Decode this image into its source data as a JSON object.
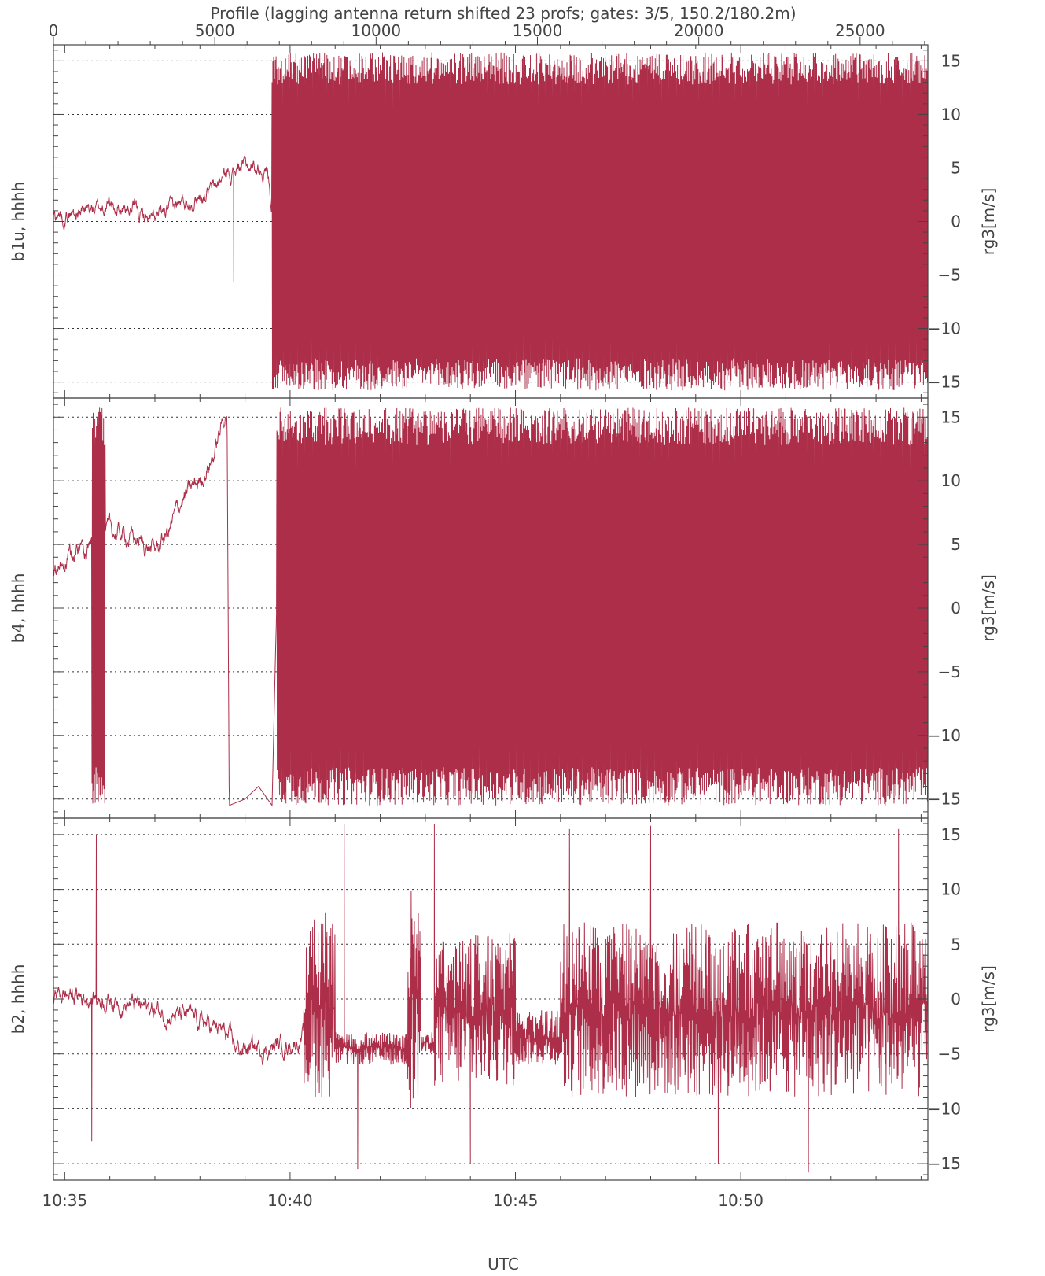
{
  "chart_data": {
    "type": "line",
    "title": "Profile (lagging antenna return shifted 23 profs; gates: 3/5, 150.2/180.2m)",
    "xlabel": "UTC",
    "top_axis": {
      "ticks": [
        0,
        5000,
        10000,
        15000,
        20000,
        25000
      ],
      "labels": [
        "0",
        "5000",
        "10000",
        "15000",
        "20000",
        "25000"
      ],
      "range": [
        0,
        27100
      ]
    },
    "x_minutes_range": [
      34.75,
      54.15
    ],
    "x_ticks": [
      35,
      40,
      45,
      50
    ],
    "x_tick_labels": [
      "10:35",
      "10:40",
      "10:45",
      "10:50"
    ],
    "ylim": [
      -16.5,
      16.5
    ],
    "grid_y": [
      -15,
      -10,
      -5,
      0,
      5,
      10,
      15
    ],
    "y_ticks": [
      15,
      10,
      5,
      0,
      -5,
      -10,
      -15
    ],
    "y_tick_labels": [
      "15",
      "10",
      "5",
      "0",
      "-5",
      "-10",
      "-15"
    ],
    "line_color": "#ad2e49",
    "panels": [
      {
        "left_label": "b1u, hhhh",
        "right_label": "rg3[m/s]",
        "trend": [
          [
            34.75,
            0.5
          ],
          [
            35.2,
            0.8
          ],
          [
            35.7,
            1.2
          ],
          [
            36.0,
            1.5
          ],
          [
            36.5,
            1.0
          ],
          [
            37.0,
            0.0
          ],
          [
            37.5,
            1.5
          ],
          [
            38.0,
            2.5
          ],
          [
            38.3,
            3.0
          ],
          [
            38.6,
            4.5
          ],
          [
            39.0,
            5.2
          ],
          [
            39.5,
            4.8
          ],
          [
            39.6,
            1.0
          ],
          [
            54.15,
            1.0
          ]
        ],
        "noisy_segments": [
          {
            "start": 34.75,
            "end": 39.6,
            "mode": "walk",
            "amplitude": 0.6
          },
          {
            "start": 39.6,
            "end": 54.15,
            "mode": "full",
            "low": -15.8,
            "high": 15.8
          }
        ],
        "spikes": [
          [
            38.75,
            -5.7
          ]
        ]
      },
      {
        "left_label": "b4, hhhh",
        "right_label": "rg3[m/s]",
        "trend": [
          [
            34.75,
            2.5
          ],
          [
            35.0,
            3.5
          ],
          [
            35.4,
            5.0
          ],
          [
            35.8,
            5.5
          ],
          [
            36.0,
            6.0
          ],
          [
            36.5,
            5.5
          ],
          [
            37.0,
            4.5
          ],
          [
            37.3,
            6.0
          ],
          [
            37.6,
            8.5
          ],
          [
            38.0,
            10.0
          ],
          [
            38.3,
            12.0
          ],
          [
            38.6,
            15.8
          ],
          [
            38.65,
            -15.5
          ],
          [
            39.0,
            -15.0
          ],
          [
            39.3,
            -14.0
          ],
          [
            39.6,
            -15.5
          ],
          [
            39.7,
            0
          ],
          [
            54.15,
            0
          ]
        ],
        "noisy_segments": [
          {
            "start": 34.75,
            "end": 38.6,
            "mode": "walk",
            "amplitude": 0.6
          },
          {
            "start": 35.6,
            "end": 35.9,
            "mode": "full",
            "low": -15.5,
            "high": 15.8
          },
          {
            "start": 39.7,
            "end": 54.15,
            "mode": "full",
            "low": -15.5,
            "high": 15.8
          }
        ],
        "spikes": []
      },
      {
        "left_label": "b2, hhhh",
        "right_label": "rg3[m/s]",
        "trend": [
          [
            34.75,
            0.5
          ],
          [
            35.5,
            0.2
          ],
          [
            36.0,
            0.0
          ],
          [
            36.5,
            -0.5
          ],
          [
            37.0,
            -1.0
          ],
          [
            37.5,
            -1.5
          ],
          [
            38.0,
            -2.0
          ],
          [
            38.5,
            -3.0
          ],
          [
            38.8,
            -4.5
          ],
          [
            39.5,
            -4.5
          ],
          [
            40.0,
            -4.0
          ],
          [
            40.3,
            -3.5
          ],
          [
            54.15,
            -1.0
          ]
        ],
        "noisy_segments": [
          {
            "start": 34.75,
            "end": 40.3,
            "mode": "walk",
            "amplitude": 0.7
          },
          {
            "start": 40.3,
            "end": 41.0,
            "mode": "band",
            "low": -9,
            "high": 8
          },
          {
            "start": 41.0,
            "end": 42.6,
            "mode": "band",
            "low": -6,
            "high": -3
          },
          {
            "start": 42.6,
            "end": 42.9,
            "mode": "band",
            "low": -10,
            "high": 10
          },
          {
            "start": 42.9,
            "end": 43.2,
            "mode": "band",
            "low": -5,
            "high": -3
          },
          {
            "start": 43.2,
            "end": 45.0,
            "mode": "band",
            "low": -8,
            "high": 6
          },
          {
            "start": 45.0,
            "end": 46.0,
            "mode": "band",
            "low": -6,
            "high": -1
          },
          {
            "start": 46.0,
            "end": 54.15,
            "mode": "band",
            "low": -9,
            "high": 7
          }
        ],
        "spikes": [
          [
            35.7,
            15.0
          ],
          [
            35.6,
            -13.0
          ],
          [
            41.2,
            16.0
          ],
          [
            41.5,
            -15.5
          ],
          [
            43.2,
            16.0
          ],
          [
            44.0,
            -15.0
          ],
          [
            46.2,
            15.5
          ],
          [
            48.0,
            15.8
          ],
          [
            49.5,
            -15.0
          ],
          [
            51.5,
            -15.8
          ],
          [
            53.5,
            15.5
          ]
        ]
      }
    ]
  }
}
